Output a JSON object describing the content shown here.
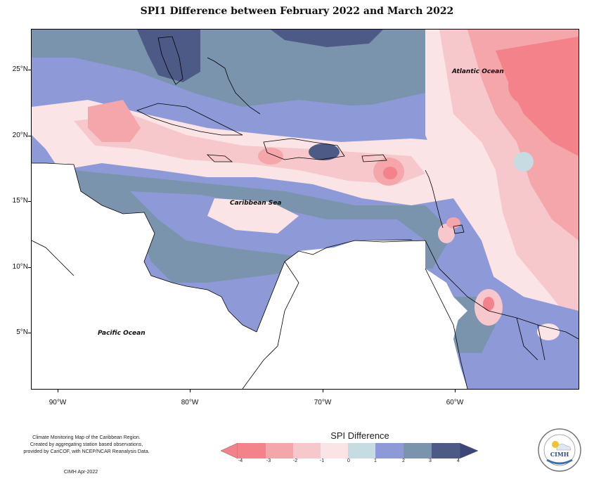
{
  "title": "SPI1 Difference between February 2022 and March 2022",
  "map": {
    "lat_labels": [
      "25°N",
      "20°N",
      "15°N",
      "10°N",
      "5°N"
    ],
    "lon_labels": [
      "90°W",
      "80°W",
      "70°W",
      "60°W"
    ],
    "place_labels": {
      "atlantic": "Atlantic Ocean",
      "caribbean": "Caribbean Sea",
      "pacific": "Pacific Ocean"
    },
    "colors": {
      "m4": "#f4828a",
      "m3": "#f4a6ab",
      "m2": "#f7c8cb",
      "m1": "#fbe4e5",
      "p0": "#c5dce2",
      "p1": "#8e9ad8",
      "p2": "#7a94ad",
      "p3": "#4e5a86",
      "land": "#ffffff"
    }
  },
  "legend": {
    "title": "SPI Difference",
    "ticks": [
      "-4",
      "-3",
      "-2",
      "-1",
      "0",
      "1",
      "2",
      "3",
      "4"
    ]
  },
  "footer": {
    "line1": "Climate Monitoring Map of the Caribbean Region.",
    "line2": "Created by aggregating station based observations,",
    "line3": "provided by CariCOF, with NCEP/NCAR Reanalysis Data.",
    "credit": "CIMH Apr-2022"
  },
  "logo": {
    "name": "CIMH"
  }
}
